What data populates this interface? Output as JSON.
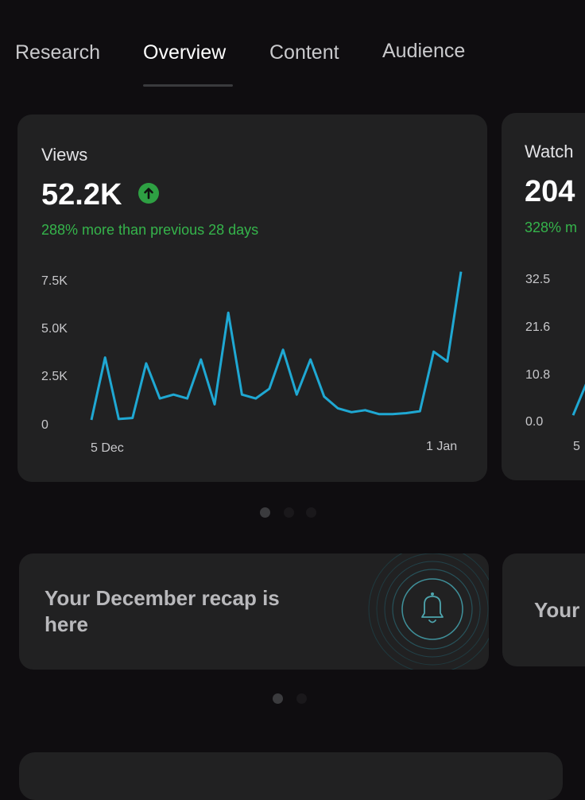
{
  "tabs": [
    {
      "label": "Research",
      "active": false
    },
    {
      "label": "Overview",
      "active": true
    },
    {
      "label": "Content",
      "active": false
    },
    {
      "label": "Audience",
      "active": false
    }
  ],
  "metrics": [
    {
      "title": "Views",
      "value": "52.2K",
      "trend_icon": "arrow-up-circle-icon",
      "change": "288% more than previous 28 days",
      "chart_data": {
        "type": "line",
        "x_tick_labels": [
          "5 Dec",
          "1 Jan"
        ],
        "y_tick_labels": [
          "0",
          "2.5K",
          "5.0K",
          "7.5K"
        ],
        "ylim": [
          0,
          7500
        ],
        "values": [
          200,
          3400,
          250,
          300,
          3100,
          1300,
          1500,
          1300,
          3300,
          1000,
          5700,
          1500,
          1300,
          1800,
          3800,
          1500,
          3300,
          1400,
          800,
          600,
          700,
          500,
          500,
          550,
          650,
          3700,
          3200,
          7800
        ],
        "line_color": "#1fa8d3"
      }
    },
    {
      "title": "Watch",
      "value": "204",
      "change": "328% m",
      "chart_data": {
        "type": "line",
        "x_tick_labels": [
          "5"
        ],
        "y_tick_labels": [
          "0.0",
          "10.8",
          "21.6",
          "32.5"
        ],
        "ylim": [
          0,
          32.5
        ],
        "values": [
          0.5,
          9
        ],
        "line_color": "#1fa8d3"
      }
    }
  ],
  "recap": {
    "text": "Your December recap is here",
    "icon": "bell-icon",
    "next_card_text": "Your"
  },
  "colors": {
    "background": "#0f0d10",
    "card": "#212122",
    "accent_line": "#1fa8d3",
    "positive": "#35b44b"
  }
}
